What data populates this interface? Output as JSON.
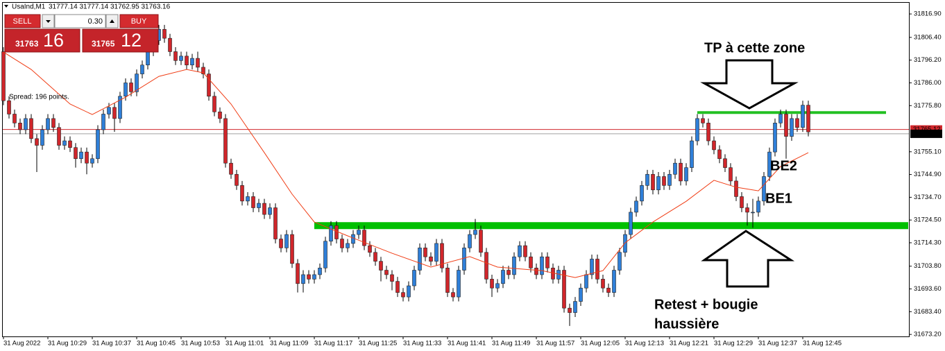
{
  "header": {
    "symbol": "UsaInd,M1",
    "ohlc": "31777.14 31777.14 31762.95 31763.16"
  },
  "panel": {
    "sell": "SELL",
    "buy": "BUY",
    "lot": "0.30",
    "sell_big": "31763",
    "sell_pips": "16",
    "buy_big": "31765",
    "buy_pips": "12"
  },
  "spread": "Spread: 196 points.",
  "chart_data": {
    "type": "candlestick",
    "up_color": "#2f7fd8",
    "down_color": "#d0262b",
    "categories": [
      "31 Aug 2022",
      null,
      null,
      null,
      null,
      null,
      null,
      null,
      "31 Aug 10:29",
      null,
      null,
      null,
      null,
      null,
      null,
      null,
      "31 Aug 10:37",
      null,
      null,
      null,
      null,
      null,
      null,
      null,
      "31 Aug 10:45",
      null,
      null,
      null,
      null,
      null,
      null,
      null,
      "31 Aug 10:53",
      null,
      null,
      null,
      null,
      null,
      null,
      null,
      "31 Aug 11:01",
      null,
      null,
      null,
      null,
      null,
      null,
      null,
      "31 Aug 11:09",
      null,
      null,
      null,
      null,
      null,
      null,
      null,
      "31 Aug 11:17",
      null,
      null,
      null,
      null,
      null,
      null,
      null,
      "31 Aug 11:25",
      null,
      null,
      null,
      null,
      null,
      null,
      null,
      "31 Aug 11:33",
      null,
      null,
      null,
      null,
      null,
      null,
      null,
      "31 Aug 11:41",
      null,
      null,
      null,
      null,
      null,
      null,
      null,
      "31 Aug 11:49",
      null,
      null,
      null,
      null,
      null,
      null,
      null,
      "31 Aug 11:57",
      null,
      null,
      null,
      null,
      null,
      null,
      null,
      "31 Aug 12:05",
      null,
      null,
      null,
      null,
      null,
      null,
      null,
      "31 Aug 12:13",
      null,
      null,
      null,
      null,
      null,
      null,
      null,
      "31 Aug 12:21",
      null,
      null,
      null,
      null,
      null,
      null,
      null,
      "31 Aug 12:29",
      null,
      null,
      null,
      null,
      null,
      null,
      null,
      "31 Aug 12:37",
      null,
      null,
      null,
      null,
      null,
      null,
      null,
      "31 Aug 12:45",
      null
    ],
    "candles": [
      [
        31800,
        31802,
        31776,
        31778
      ],
      [
        31778,
        31780,
        31770,
        31772
      ],
      [
        31772,
        31774,
        31766,
        31768
      ],
      [
        31768,
        31770,
        31763,
        31765
      ],
      [
        31765,
        31772,
        31763,
        31770
      ],
      [
        31770,
        31772,
        31759,
        31761
      ],
      [
        31761,
        31763,
        31746,
        31758
      ],
      [
        31758,
        31767,
        31756,
        31765
      ],
      [
        31765,
        31772,
        31763,
        31770
      ],
      [
        31770,
        31772,
        31764,
        31766
      ],
      [
        31766,
        31768,
        31756,
        31758
      ],
      [
        31758,
        31762,
        31756,
        31760
      ],
      [
        31760,
        31762,
        31755,
        31757
      ],
      [
        31757,
        31759,
        31748,
        31752
      ],
      [
        31752,
        31757,
        31750,
        31755
      ],
      [
        31755,
        31757,
        31745,
        31750
      ],
      [
        31750,
        31754,
        31748,
        31752
      ],
      [
        31752,
        31767,
        31750,
        31765
      ],
      [
        31765,
        31774,
        31763,
        31772
      ],
      [
        31772,
        31777,
        31770,
        31775
      ],
      [
        31775,
        31777,
        31764,
        31770
      ],
      [
        31770,
        31782,
        31768,
        31780
      ],
      [
        31780,
        31788,
        31778,
        31786
      ],
      [
        31786,
        31788,
        31780,
        31782
      ],
      [
        31782,
        31792,
        31780,
        31790
      ],
      [
        31790,
        31796,
        31788,
        31794
      ],
      [
        31794,
        31802,
        31792,
        31800
      ],
      [
        31800,
        31807,
        31798,
        31805
      ],
      [
        31805,
        31812,
        31803,
        31810
      ],
      [
        31810,
        31812,
        31804,
        31806
      ],
      [
        31806,
        31808,
        31798,
        31800
      ],
      [
        31800,
        31802,
        31794,
        31796
      ],
      [
        31796,
        31800,
        31794,
        31798
      ],
      [
        31798,
        31800,
        31792,
        31794
      ],
      [
        31794,
        31799,
        31792,
        31797
      ],
      [
        31797,
        31800,
        31791,
        31793
      ],
      [
        31793,
        31795,
        31788,
        31790
      ],
      [
        31790,
        31792,
        31778,
        31780
      ],
      [
        31780,
        31782,
        31771,
        31773
      ],
      [
        31773,
        31775,
        31768,
        31770
      ],
      [
        31770,
        31772,
        31748,
        31750
      ],
      [
        31750,
        31752,
        31743,
        31745
      ],
      [
        31745,
        31747,
        31738,
        31740
      ],
      [
        31740,
        31742,
        31731,
        31733
      ],
      [
        31733,
        31737,
        31731,
        31735
      ],
      [
        31735,
        31737,
        31728,
        31730
      ],
      [
        31730,
        31734,
        31728,
        31732
      ],
      [
        31732,
        31734,
        31725,
        31727
      ],
      [
        31727,
        31732,
        31725,
        31730
      ],
      [
        31730,
        31732,
        31714,
        31716
      ],
      [
        31716,
        31718,
        31710,
        31712
      ],
      [
        31712,
        31720,
        31710,
        31718
      ],
      [
        31718,
        31720,
        31703,
        31705
      ],
      [
        31705,
        31707,
        31692,
        31696
      ],
      [
        31696,
        31702,
        31692,
        31700
      ],
      [
        31700,
        31702,
        31696,
        31698
      ],
      [
        31698,
        31702,
        31696,
        31700
      ],
      [
        31700,
        31705,
        31698,
        31703
      ],
      [
        31703,
        31717,
        31701,
        31715
      ],
      [
        31715,
        31724,
        31713,
        31722
      ],
      [
        31722,
        31724,
        31714,
        31716
      ],
      [
        31716,
        31718,
        31710,
        31712
      ],
      [
        31712,
        31716,
        31710,
        31714
      ],
      [
        31714,
        31720,
        31712,
        31718
      ],
      [
        31718,
        31722,
        31716,
        31720
      ],
      [
        31720,
        31722,
        31711,
        31713
      ],
      [
        31713,
        31715,
        31708,
        31710
      ],
      [
        31710,
        31712,
        31704,
        31706
      ],
      [
        31706,
        31708,
        31697,
        31702
      ],
      [
        31702,
        31704,
        31698,
        31700
      ],
      [
        31700,
        31702,
        31693,
        31697
      ],
      [
        31697,
        31699,
        31690,
        31692
      ],
      [
        31692,
        31694,
        31688,
        31690
      ],
      [
        31690,
        31697,
        31688,
        31695
      ],
      [
        31695,
        31704,
        31693,
        31702
      ],
      [
        31702,
        31714,
        31700,
        31712
      ],
      [
        31712,
        31714,
        31706,
        31708
      ],
      [
        31708,
        31710,
        31704,
        31706
      ],
      [
        31706,
        31716,
        31704,
        31714
      ],
      [
        31714,
        31716,
        31701,
        31703
      ],
      [
        31703,
        31705,
        31690,
        31692
      ],
      [
        31692,
        31694,
        31688,
        31690
      ],
      [
        31690,
        31704,
        31688,
        31702
      ],
      [
        31702,
        31714,
        31700,
        31712
      ],
      [
        31712,
        31720,
        31710,
        31718
      ],
      [
        31718,
        31725,
        31716,
        31720
      ],
      [
        31720,
        31722,
        31708,
        31710
      ],
      [
        31710,
        31712,
        31696,
        31698
      ],
      [
        31698,
        31700,
        31690,
        31694
      ],
      [
        31694,
        31698,
        31692,
        31696
      ],
      [
        31696,
        31704,
        31694,
        31702
      ],
      [
        31702,
        31704,
        31698,
        31700
      ],
      [
        31700,
        31710,
        31698,
        31708
      ],
      [
        31708,
        31715,
        31706,
        31713
      ],
      [
        31713,
        31715,
        31706,
        31708
      ],
      [
        31708,
        31710,
        31701,
        31703
      ],
      [
        31703,
        31705,
        31698,
        31700
      ],
      [
        31700,
        31710,
        31698,
        31708
      ],
      [
        31708,
        31710,
        31701,
        31703
      ],
      [
        31703,
        31705,
        31696,
        31698
      ],
      [
        31698,
        31704,
        31696,
        31702
      ],
      [
        31702,
        31704,
        31683,
        31685
      ],
      [
        31685,
        31687,
        31677,
        31683
      ],
      [
        31683,
        31690,
        31681,
        31688
      ],
      [
        31688,
        31696,
        31686,
        31694
      ],
      [
        31694,
        31702,
        31692,
        31700
      ],
      [
        31700,
        31709,
        31698,
        31707
      ],
      [
        31707,
        31709,
        31696,
        31698
      ],
      [
        31698,
        31700,
        31692,
        31694
      ],
      [
        31694,
        31696,
        31690,
        31692
      ],
      [
        31692,
        31704,
        31690,
        31702
      ],
      [
        31702,
        31712,
        31700,
        31710
      ],
      [
        31710,
        31720,
        31708,
        31718
      ],
      [
        31718,
        31730,
        31716,
        31728
      ],
      [
        31728,
        31735,
        31726,
        31733
      ],
      [
        31733,
        31742,
        31731,
        31740
      ],
      [
        31740,
        31747,
        31738,
        31745
      ],
      [
        31745,
        31747,
        31736,
        31738
      ],
      [
        31738,
        31746,
        31736,
        31744
      ],
      [
        31744,
        31746,
        31738,
        31740
      ],
      [
        31740,
        31747,
        31738,
        31745
      ],
      [
        31745,
        31752,
        31743,
        31750
      ],
      [
        31750,
        31752,
        31740,
        31742
      ],
      [
        31742,
        31750,
        31740,
        31748
      ],
      [
        31748,
        31762,
        31746,
        31760
      ],
      [
        31760,
        31772,
        31758,
        31770
      ],
      [
        31770,
        31772,
        31766,
        31768
      ],
      [
        31768,
        31770,
        31758,
        31760
      ],
      [
        31760,
        31762,
        31754,
        31756
      ],
      [
        31756,
        31758,
        31750,
        31752
      ],
      [
        31752,
        31754,
        31746,
        31748
      ],
      [
        31748,
        31750,
        31740,
        31742
      ],
      [
        31742,
        31744,
        31733,
        31735
      ],
      [
        31735,
        31737,
        31728,
        31730
      ],
      [
        31730,
        31732,
        31722,
        31728
      ],
      [
        31728,
        31734,
        31721,
        31728
      ],
      [
        31728,
        31735,
        31726,
        31733
      ],
      [
        31733,
        31746,
        31731,
        31744
      ],
      [
        31744,
        31757,
        31742,
        31755
      ],
      [
        31755,
        31770,
        31753,
        31768
      ],
      [
        31768,
        31774,
        31766,
        31772
      ],
      [
        31772,
        31774,
        31752,
        31762
      ],
      [
        31762,
        31772,
        31760,
        31770
      ],
      [
        31770,
        31772,
        31764,
        31766
      ],
      [
        31766,
        31778,
        31764,
        31776
      ],
      [
        31776,
        31778,
        31762,
        31764
      ]
    ],
    "ma": {
      "color": "#f03c14",
      "x": [
        0,
        5,
        12,
        16,
        22,
        28,
        33,
        36,
        41,
        47,
        52,
        56,
        62,
        70,
        77,
        84,
        89,
        97,
        103,
        108,
        112,
        117,
        123,
        128,
        132,
        136,
        140,
        145
      ],
      "values": [
        31799.8,
        31792.0,
        31776.5,
        31771.8,
        31779.6,
        31788.9,
        31792.0,
        31790.5,
        31776.5,
        31754.7,
        31736.1,
        31723.6,
        31717.4,
        31709.6,
        31703.4,
        31708.1,
        31703.4,
        31701.8,
        31698.7,
        31701.8,
        31714.3,
        31723.6,
        31732.9,
        31742.3,
        31739.2,
        31737.6,
        31748.5,
        31754.7
      ]
    },
    "ylim": [
      31672.3,
      31821.6
    ],
    "yticks": [
      {
        "value": 31816.9,
        "label": "31816.90"
      },
      {
        "value": 31806.4,
        "label": "31806.40"
      },
      {
        "value": 31796.2,
        "label": "31796.20"
      },
      {
        "value": 31786.0,
        "label": "31786.00"
      },
      {
        "value": 31775.8,
        "label": "31775.80"
      },
      {
        "value": 31755.1,
        "label": "31755.10"
      },
      {
        "value": 31744.9,
        "label": "31744.90"
      },
      {
        "value": 31734.7,
        "label": "31734.70"
      },
      {
        "value": 31724.5,
        "label": "31724.50"
      },
      {
        "value": 31714.3,
        "label": "31714.30"
      },
      {
        "value": 31703.8,
        "label": "31703.80"
      },
      {
        "value": 31693.6,
        "label": "31693.60"
      },
      {
        "value": 31683.4,
        "label": "31683.40"
      },
      {
        "value": 31673.2,
        "label": "31673.20"
      }
    ],
    "ask": {
      "value": 31765.12,
      "label": "31765.12",
      "color": "#d0262b"
    },
    "bid": {
      "value": 31763.16,
      "label": "31763.16",
      "color": "#a0a0a0"
    },
    "levels": [
      {
        "value": 31722.0,
        "from": 56,
        "to": 163,
        "color": "#00c000",
        "width": 10
      },
      {
        "value": 31772.7,
        "from": 125,
        "to": 159,
        "color": "#22c022",
        "width": 4
      }
    ],
    "annotations": [
      "TP à cette zone",
      "BE2",
      "BE1",
      "Retest + bougie",
      "haussière"
    ]
  }
}
